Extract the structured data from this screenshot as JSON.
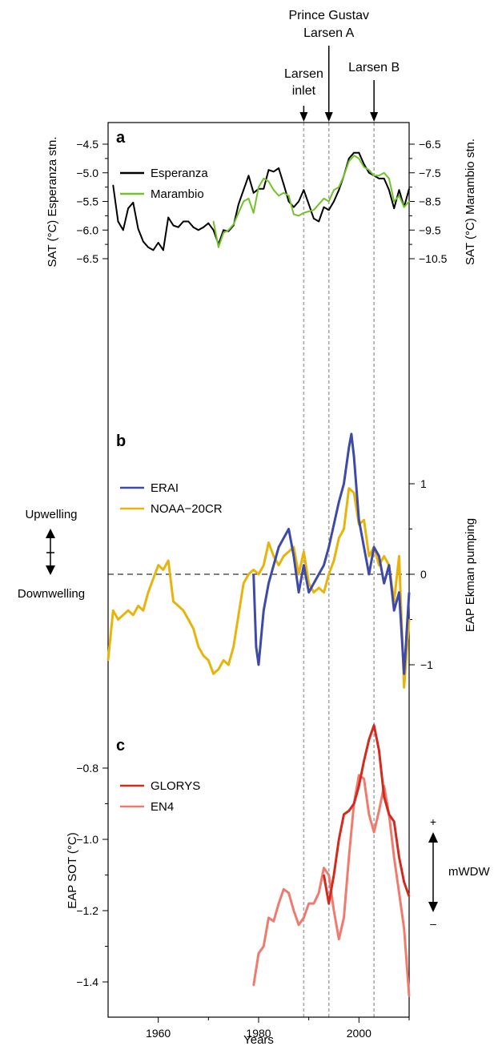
{
  "xlabel": "Years",
  "x_ticks": [
    1960,
    1980,
    2000
  ],
  "events": [
    {
      "year": 1989,
      "label_lines": [
        "Larsen",
        "inlet"
      ]
    },
    {
      "year": 1994,
      "label_lines": [
        "Prince Gustav",
        "Larsen A"
      ]
    },
    {
      "year": 2003,
      "label_lines": [
        "Larsen B"
      ]
    }
  ],
  "colors": {
    "esperanza": "#000000",
    "marambio": "#72c32a",
    "erai": "#3d4aa8",
    "noaa": "#e8b40c",
    "glorys": "#d42a1e",
    "en4": "#f07a6e",
    "event_line": "#a8a8a8",
    "frame": "#000000"
  },
  "chart_data": [
    {
      "type": "line",
      "panel": "a",
      "ylabel_left": "SAT (°C) Esperanza stn.",
      "ylabel_right": "SAT (°C) Marambio stn.",
      "ylim_left": [
        -6.6,
        -4.4
      ],
      "ylim_right": [
        -10.7,
        -6.3
      ],
      "yticks_left": [
        "-4.5",
        "-5.0",
        "-5.5",
        "-6.0",
        "-6.5"
      ],
      "yticks_right": [
        "-6.5",
        "-7.5",
        "-8.5",
        "-9.5",
        "-10.5"
      ],
      "legend_position": "top-left",
      "series": [
        {
          "name": "Esperanza",
          "axis": "left",
          "x": [
            1951,
            1952,
            1953,
            1954,
            1955,
            1956,
            1957,
            1958,
            1959,
            1960,
            1961,
            1962,
            1963,
            1964,
            1965,
            1966,
            1967,
            1968,
            1969,
            1970,
            1971,
            1972,
            1973,
            1974,
            1975,
            1976,
            1977,
            1978,
            1979,
            1980,
            1981,
            1982,
            1983,
            1984,
            1985,
            1986,
            1987,
            1988,
            1989,
            1990,
            1991,
            1992,
            1993,
            1994,
            1995,
            1996,
            1997,
            1998,
            1999,
            2000,
            2001,
            2002,
            2003,
            2004,
            2005,
            2006,
            2007,
            2008,
            2009,
            2010
          ],
          "values": [
            -5.22,
            -5.85,
            -6.0,
            -5.62,
            -5.52,
            -5.98,
            -6.2,
            -6.3,
            -6.35,
            -6.22,
            -6.35,
            -5.78,
            -5.92,
            -5.95,
            -5.85,
            -5.85,
            -5.95,
            -6.0,
            -5.95,
            -5.88,
            -6.0,
            -6.25,
            -6.0,
            -6.02,
            -5.92,
            -5.55,
            -5.3,
            -5.05,
            -5.35,
            -5.28,
            -5.28,
            -4.95,
            -4.98,
            -4.92,
            -5.2,
            -5.5,
            -5.6,
            -5.5,
            -5.3,
            -5.55,
            -5.8,
            -5.85,
            -5.6,
            -5.65,
            -5.5,
            -5.3,
            -5.05,
            -4.75,
            -4.65,
            -4.65,
            -4.85,
            -5.0,
            -5.05,
            -5.1,
            -5.1,
            -5.3,
            -5.62,
            -5.3,
            -5.6,
            -5.28
          ]
        },
        {
          "name": "Marambio",
          "axis": "right",
          "x": [
            1971,
            1972,
            1973,
            1974,
            1975,
            1976,
            1977,
            1978,
            1979,
            1980,
            1981,
            1982,
            1983,
            1984,
            1985,
            1986,
            1987,
            1988,
            1989,
            1990,
            1991,
            1992,
            1993,
            1994,
            1995,
            1996,
            1997,
            1998,
            1999,
            2000,
            2001,
            2002,
            2003,
            2004,
            2005,
            2006,
            2007,
            2008,
            2009,
            2010
          ],
          "values": [
            -9.2,
            -10.1,
            -9.6,
            -9.5,
            -9.3,
            -8.9,
            -8.5,
            -8.4,
            -8.9,
            -8.0,
            -7.7,
            -7.8,
            -8.1,
            -8.3,
            -8.2,
            -8.3,
            -8.95,
            -9.0,
            -8.9,
            -8.85,
            -8.8,
            -8.6,
            -8.4,
            -8.5,
            -8.1,
            -8.0,
            -7.6,
            -7.1,
            -6.9,
            -7.0,
            -7.3,
            -7.4,
            -7.6,
            -7.6,
            -7.5,
            -7.7,
            -8.5,
            -8.3,
            -8.7,
            -8.5
          ]
        }
      ]
    },
    {
      "type": "line",
      "panel": "b",
      "ylabel_right": "EAP Ekman pumping",
      "ylim": [
        -1.4,
        1.6
      ],
      "yticks_right": [
        "1",
        "0",
        "-1"
      ],
      "zero_line": true,
      "legend_position": "top-left",
      "side_labels": {
        "top": "Upwelling",
        "bottom": "Downwelling"
      },
      "series": [
        {
          "name": "ERAI",
          "x": [
            1979,
            1979.5,
            1980,
            1981,
            1982,
            1983,
            1984,
            1985,
            1986,
            1987,
            1988,
            1989,
            1990,
            1991,
            1992,
            1993,
            1994,
            1995,
            1996,
            1997,
            1998,
            1998.5,
            1999,
            2000,
            2001,
            2002,
            2003,
            2004,
            2005,
            2006,
            2007,
            2008,
            2009,
            2010
          ],
          "values": [
            0.0,
            -0.8,
            -1.0,
            -0.4,
            -0.1,
            0.1,
            0.3,
            0.4,
            0.5,
            0.2,
            -0.2,
            0.1,
            -0.2,
            -0.1,
            0.0,
            0.1,
            0.3,
            0.55,
            0.8,
            1.0,
            1.4,
            1.55,
            1.3,
            0.6,
            0.3,
            0.0,
            0.3,
            0.2,
            -0.1,
            0.1,
            -0.4,
            -0.2,
            -1.1,
            -0.2
          ]
        },
        {
          "name": "NOAA-20CR",
          "x": [
            1950,
            1951,
            1952,
            1953,
            1954,
            1955,
            1956,
            1957,
            1958,
            1959,
            1960,
            1961,
            1962,
            1963,
            1964,
            1965,
            1966,
            1967,
            1968,
            1969,
            1970,
            1971,
            1972,
            1973,
            1974,
            1975,
            1976,
            1977,
            1978,
            1979,
            1980,
            1981,
            1982,
            1983,
            1984,
            1985,
            1986,
            1987,
            1988,
            1989,
            1990,
            1991,
            1992,
            1993,
            1994,
            1995,
            1996,
            1997,
            1998,
            1999,
            2000,
            2001,
            2002,
            2003,
            2004,
            2005,
            2006,
            2007,
            2008,
            2009,
            2010
          ],
          "values": [
            -0.95,
            -0.4,
            -0.5,
            -0.45,
            -0.4,
            -0.45,
            -0.35,
            -0.4,
            -0.2,
            -0.05,
            0.1,
            0.05,
            0.15,
            -0.3,
            -0.35,
            -0.4,
            -0.5,
            -0.6,
            -0.8,
            -0.9,
            -0.95,
            -1.1,
            -1.05,
            -0.95,
            -1.0,
            -0.8,
            -0.45,
            -0.1,
            0.0,
            0.05,
            0.0,
            0.1,
            0.35,
            0.2,
            0.1,
            0.2,
            0.25,
            0.3,
            0.0,
            0.25,
            -0.1,
            -0.2,
            -0.15,
            -0.2,
            0.0,
            0.15,
            0.4,
            0.5,
            0.95,
            0.9,
            0.55,
            0.6,
            0.2,
            0.3,
            0.1,
            0.2,
            0.1,
            -0.3,
            0.2,
            -1.25,
            -0.5
          ]
        }
      ]
    },
    {
      "type": "line",
      "panel": "c",
      "ylabel_left": "EAP SOT (°C)",
      "ylim": [
        -1.46,
        -0.62
      ],
      "yticks_left": [
        "-0.8",
        "-1.0",
        "-1.2",
        "-1.4"
      ],
      "legend_position": "top-left",
      "side_labels": {
        "top": "+",
        "bottom": "–",
        "middle": "mWDW"
      },
      "series": [
        {
          "name": "GLORYS",
          "x": [
            1993,
            1994,
            1995,
            1996,
            1997,
            1998,
            1999,
            2000,
            2001,
            2002,
            2003,
            2004,
            2005,
            2006,
            2007,
            2008,
            2009,
            2010
          ],
          "values": [
            -1.1,
            -1.18,
            -1.1,
            -1.0,
            -0.93,
            -0.92,
            -0.9,
            -0.85,
            -0.78,
            -0.72,
            -0.68,
            -0.75,
            -0.88,
            -0.93,
            -0.95,
            -1.05,
            -1.12,
            -1.16
          ]
        },
        {
          "name": "EN4",
          "x": [
            1979,
            1980,
            1981,
            1982,
            1983,
            1984,
            1985,
            1986,
            1987,
            1988,
            1989,
            1990,
            1991,
            1992,
            1993,
            1994,
            1995,
            1996,
            1997,
            1998,
            1999,
            2000,
            2001,
            2002,
            2003,
            2004,
            2005,
            2006,
            2007,
            2008,
            2009,
            2010
          ],
          "values": [
            -1.41,
            -1.32,
            -1.3,
            -1.22,
            -1.23,
            -1.18,
            -1.14,
            -1.15,
            -1.2,
            -1.24,
            -1.22,
            -1.18,
            -1.18,
            -1.15,
            -1.08,
            -1.1,
            -1.2,
            -1.28,
            -1.22,
            -1.05,
            -0.9,
            -0.82,
            -0.83,
            -0.93,
            -0.98,
            -0.92,
            -0.85,
            -0.93,
            -1.05,
            -1.15,
            -1.25,
            -1.44
          ]
        }
      ]
    }
  ]
}
